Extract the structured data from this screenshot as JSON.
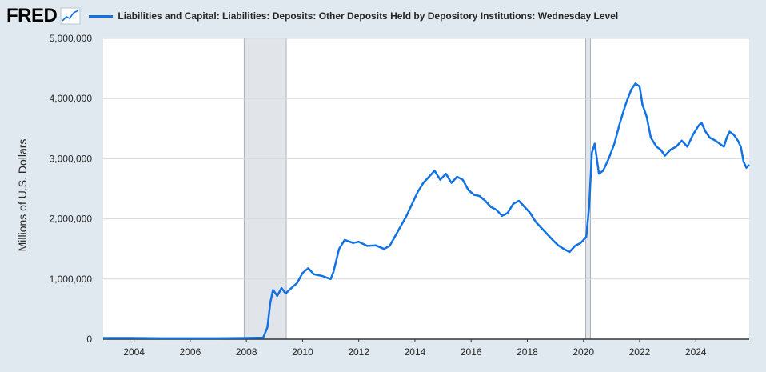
{
  "header": {
    "logo": "FRED",
    "logo_icon": "trend-line-icon",
    "series_title": "Liabilities and Capital: Liabilities: Deposits: Other Deposits Held by Depository Institutions: Wednesday Level"
  },
  "colors": {
    "line": "#1172e3",
    "recession": "#e1e5ea",
    "background": "#e1e9f0",
    "plot": "#ffffff"
  },
  "chart_data": {
    "type": "line",
    "title": "",
    "xlabel": "",
    "ylabel": "Millions of U.S. Dollars",
    "xlim": [
      2002.9,
      2025.9
    ],
    "ylim": [
      0,
      5000000
    ],
    "grid": true,
    "legend": "top-left",
    "x_ticks": [
      "2004",
      "2006",
      "2008",
      "2010",
      "2012",
      "2014",
      "2016",
      "2018",
      "2020",
      "2022",
      "2024"
    ],
    "y_ticks": [
      "0",
      "1,000,000",
      "2,000,000",
      "3,000,000",
      "4,000,000",
      "5,000,000"
    ],
    "recessions": [
      {
        "start": 2007.92,
        "end": 2009.42
      },
      {
        "start": 2020.08,
        "end": 2020.25
      }
    ],
    "series": [
      {
        "name": "Liabilities and Capital: Liabilities: Deposits: Other Deposits Held by Depository Institutions: Wednesday Level",
        "points": [
          [
            2002.9,
            20000
          ],
          [
            2004.0,
            20000
          ],
          [
            2005.0,
            15000
          ],
          [
            2006.0,
            15000
          ],
          [
            2007.0,
            15000
          ],
          [
            2008.0,
            20000
          ],
          [
            2008.6,
            25000
          ],
          [
            2008.75,
            200000
          ],
          [
            2008.85,
            600000
          ],
          [
            2008.95,
            820000
          ],
          [
            2009.1,
            720000
          ],
          [
            2009.25,
            850000
          ],
          [
            2009.4,
            760000
          ],
          [
            2009.6,
            850000
          ],
          [
            2009.8,
            930000
          ],
          [
            2010.0,
            1100000
          ],
          [
            2010.2,
            1180000
          ],
          [
            2010.4,
            1080000
          ],
          [
            2010.7,
            1050000
          ],
          [
            2011.0,
            1000000
          ],
          [
            2011.1,
            1120000
          ],
          [
            2011.3,
            1500000
          ],
          [
            2011.5,
            1650000
          ],
          [
            2011.8,
            1600000
          ],
          [
            2012.0,
            1620000
          ],
          [
            2012.3,
            1550000
          ],
          [
            2012.6,
            1560000
          ],
          [
            2012.9,
            1500000
          ],
          [
            2013.1,
            1550000
          ],
          [
            2013.4,
            1800000
          ],
          [
            2013.7,
            2050000
          ],
          [
            2013.9,
            2250000
          ],
          [
            2014.1,
            2450000
          ],
          [
            2014.3,
            2600000
          ],
          [
            2014.5,
            2700000
          ],
          [
            2014.7,
            2800000
          ],
          [
            2014.9,
            2650000
          ],
          [
            2015.1,
            2750000
          ],
          [
            2015.3,
            2600000
          ],
          [
            2015.5,
            2700000
          ],
          [
            2015.7,
            2650000
          ],
          [
            2015.9,
            2480000
          ],
          [
            2016.1,
            2400000
          ],
          [
            2016.3,
            2380000
          ],
          [
            2016.5,
            2300000
          ],
          [
            2016.7,
            2200000
          ],
          [
            2016.9,
            2150000
          ],
          [
            2017.1,
            2050000
          ],
          [
            2017.3,
            2100000
          ],
          [
            2017.5,
            2250000
          ],
          [
            2017.7,
            2300000
          ],
          [
            2017.9,
            2200000
          ],
          [
            2018.1,
            2100000
          ],
          [
            2018.3,
            1950000
          ],
          [
            2018.5,
            1850000
          ],
          [
            2018.7,
            1750000
          ],
          [
            2018.9,
            1650000
          ],
          [
            2019.1,
            1560000
          ],
          [
            2019.3,
            1500000
          ],
          [
            2019.5,
            1450000
          ],
          [
            2019.7,
            1550000
          ],
          [
            2019.9,
            1600000
          ],
          [
            2020.1,
            1700000
          ],
          [
            2020.2,
            2200000
          ],
          [
            2020.3,
            3100000
          ],
          [
            2020.4,
            3250000
          ],
          [
            2020.55,
            2750000
          ],
          [
            2020.7,
            2800000
          ],
          [
            2020.9,
            3000000
          ],
          [
            2021.1,
            3250000
          ],
          [
            2021.3,
            3600000
          ],
          [
            2021.5,
            3900000
          ],
          [
            2021.7,
            4150000
          ],
          [
            2021.85,
            4250000
          ],
          [
            2022.0,
            4200000
          ],
          [
            2022.1,
            3900000
          ],
          [
            2022.25,
            3700000
          ],
          [
            2022.4,
            3350000
          ],
          [
            2022.6,
            3200000
          ],
          [
            2022.75,
            3150000
          ],
          [
            2022.9,
            3050000
          ],
          [
            2023.1,
            3150000
          ],
          [
            2023.3,
            3200000
          ],
          [
            2023.5,
            3300000
          ],
          [
            2023.7,
            3200000
          ],
          [
            2023.9,
            3400000
          ],
          [
            2024.1,
            3550000
          ],
          [
            2024.2,
            3600000
          ],
          [
            2024.35,
            3450000
          ],
          [
            2024.5,
            3350000
          ],
          [
            2024.7,
            3300000
          ],
          [
            2024.85,
            3250000
          ],
          [
            2025.0,
            3200000
          ],
          [
            2025.1,
            3350000
          ],
          [
            2025.2,
            3450000
          ],
          [
            2025.35,
            3400000
          ],
          [
            2025.5,
            3300000
          ],
          [
            2025.6,
            3200000
          ],
          [
            2025.7,
            2950000
          ],
          [
            2025.8,
            2850000
          ],
          [
            2025.9,
            2900000
          ]
        ]
      }
    ]
  }
}
